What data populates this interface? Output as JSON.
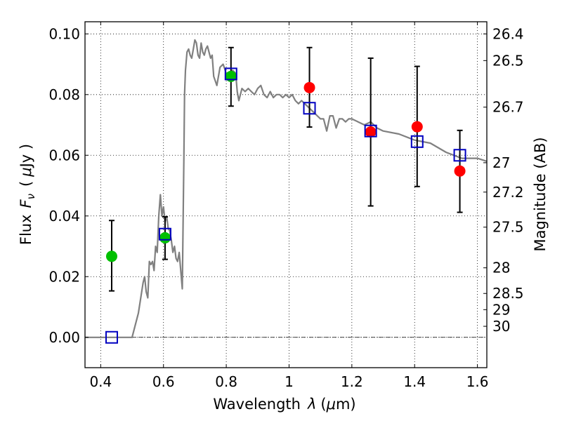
{
  "chart_data": {
    "type": "scatter",
    "xlabel_text": "Wavelength",
    "xlabel_symbol": "λ",
    "xlabel_unit_open": "(",
    "xlabel_unit_mu": "μ",
    "xlabel_unit_rest": "m)",
    "ylabel_text": "Flux",
    "ylabel_symbol": "F",
    "ylabel_subscript": "ν",
    "ylabel_unit_open": "(",
    "ylabel_unit_mu": "μ",
    "ylabel_unit_rest": "Jy )",
    "y2label": "Magnitude (AB)",
    "xlim": [
      0.35,
      1.63
    ],
    "ylim": [
      -0.01,
      0.104
    ],
    "grid": true,
    "x_ticks": [
      {
        "value": 0.4,
        "label": "0.4"
      },
      {
        "value": 0.6,
        "label": "0.6"
      },
      {
        "value": 0.8,
        "label": "0.8"
      },
      {
        "value": 1.0,
        "label": "1"
      },
      {
        "value": 1.2,
        "label": "1.2"
      },
      {
        "value": 1.4,
        "label": "1.4"
      },
      {
        "value": 1.6,
        "label": "1.6"
      }
    ],
    "y_ticks": [
      {
        "value": 0.0,
        "label": "0.00"
      },
      {
        "value": 0.02,
        "label": "0.02"
      },
      {
        "value": 0.04,
        "label": "0.04"
      },
      {
        "value": 0.06,
        "label": "0.06"
      },
      {
        "value": 0.08,
        "label": "0.08"
      },
      {
        "value": 0.1,
        "label": "0.10"
      }
    ],
    "mag_ticks": [
      {
        "value": 26.4,
        "label": "26.4"
      },
      {
        "value": 26.5,
        "label": "26.5"
      },
      {
        "value": 26.7,
        "label": "26.7"
      },
      {
        "value": 27,
        "label": "27"
      },
      {
        "value": 27.2,
        "label": "27.2"
      },
      {
        "value": 27.5,
        "label": "27.5"
      },
      {
        "value": 28,
        "label": "28"
      },
      {
        "value": 28.5,
        "label": "28.5"
      },
      {
        "value": 29,
        "label": "29"
      },
      {
        "value": 30,
        "label": "30"
      }
    ],
    "model_spectrum": {
      "color": "#808080",
      "x": [
        0.35,
        0.5,
        0.52,
        0.535,
        0.54,
        0.545,
        0.55,
        0.555,
        0.56,
        0.565,
        0.57,
        0.575,
        0.58,
        0.585,
        0.59,
        0.595,
        0.6,
        0.605,
        0.61,
        0.615,
        0.62,
        0.625,
        0.63,
        0.635,
        0.64,
        0.645,
        0.65,
        0.655,
        0.66,
        0.665,
        0.667,
        0.67,
        0.675,
        0.68,
        0.685,
        0.69,
        0.695,
        0.7,
        0.705,
        0.71,
        0.715,
        0.72,
        0.725,
        0.73,
        0.735,
        0.74,
        0.745,
        0.75,
        0.755,
        0.76,
        0.77,
        0.78,
        0.79,
        0.8,
        0.81,
        0.82,
        0.83,
        0.835,
        0.84,
        0.845,
        0.85,
        0.86,
        0.87,
        0.88,
        0.89,
        0.9,
        0.91,
        0.92,
        0.93,
        0.94,
        0.95,
        0.96,
        0.97,
        0.98,
        0.99,
        1.0,
        1.01,
        1.02,
        1.03,
        1.04,
        1.05,
        1.06,
        1.07,
        1.08,
        1.09,
        1.1,
        1.11,
        1.12,
        1.13,
        1.14,
        1.15,
        1.16,
        1.17,
        1.18,
        1.19,
        1.2,
        1.22,
        1.24,
        1.26,
        1.28,
        1.3,
        1.35,
        1.4,
        1.45,
        1.5,
        1.55,
        1.6,
        1.63
      ],
      "y": [
        0.0,
        0.0,
        0.008,
        0.018,
        0.02,
        0.015,
        0.013,
        0.025,
        0.024,
        0.025,
        0.022,
        0.03,
        0.028,
        0.04,
        0.047,
        0.04,
        0.043,
        0.038,
        0.04,
        0.036,
        0.035,
        0.032,
        0.028,
        0.03,
        0.026,
        0.025,
        0.028,
        0.022,
        0.016,
        0.06,
        0.08,
        0.088,
        0.094,
        0.095,
        0.093,
        0.092,
        0.095,
        0.098,
        0.097,
        0.093,
        0.092,
        0.097,
        0.094,
        0.093,
        0.095,
        0.096,
        0.094,
        0.092,
        0.093,
        0.086,
        0.083,
        0.089,
        0.09,
        0.087,
        0.086,
        0.088,
        0.087,
        0.081,
        0.078,
        0.08,
        0.082,
        0.081,
        0.082,
        0.081,
        0.08,
        0.082,
        0.083,
        0.08,
        0.079,
        0.081,
        0.079,
        0.08,
        0.08,
        0.079,
        0.08,
        0.079,
        0.08,
        0.078,
        0.077,
        0.078,
        0.077,
        0.076,
        0.075,
        0.074,
        0.073,
        0.072,
        0.072,
        0.068,
        0.073,
        0.073,
        0.069,
        0.072,
        0.072,
        0.071,
        0.072,
        0.072,
        0.071,
        0.07,
        0.071,
        0.069,
        0.068,
        0.067,
        0.065,
        0.064,
        0.061,
        0.059,
        0.059,
        0.058
      ]
    },
    "series": [
      {
        "marker": "circle",
        "color": "#00c000",
        "x": [
          0.435,
          0.605,
          0.815
        ],
        "y": [
          0.0267,
          0.0328,
          0.086
        ]
      },
      {
        "marker": "circle",
        "color": "#ff0000",
        "x": [
          1.065,
          1.26,
          1.408,
          1.544
        ],
        "y": [
          0.0823,
          0.0677,
          0.0694,
          0.0548
        ]
      },
      {
        "marker": "open-square",
        "color": "#0000c0",
        "x": [
          0.435,
          0.605,
          0.815,
          1.065,
          1.26,
          1.408,
          1.544
        ],
        "y": [
          0.0,
          0.034,
          0.0868,
          0.0755,
          0.068,
          0.0645,
          0.06
        ]
      }
    ],
    "error_bars": [
      {
        "x": 0.435,
        "low": 0.0153,
        "high": 0.0385
      },
      {
        "x": 0.605,
        "low": 0.0257,
        "high": 0.0397
      },
      {
        "x": 0.815,
        "low": 0.0762,
        "high": 0.0955
      },
      {
        "x": 1.065,
        "low": 0.0693,
        "high": 0.0955
      },
      {
        "x": 1.26,
        "low": 0.0433,
        "high": 0.092
      },
      {
        "x": 1.408,
        "low": 0.0497,
        "high": 0.0893
      },
      {
        "x": 1.544,
        "low": 0.0412,
        "high": 0.0682
      }
    ]
  }
}
